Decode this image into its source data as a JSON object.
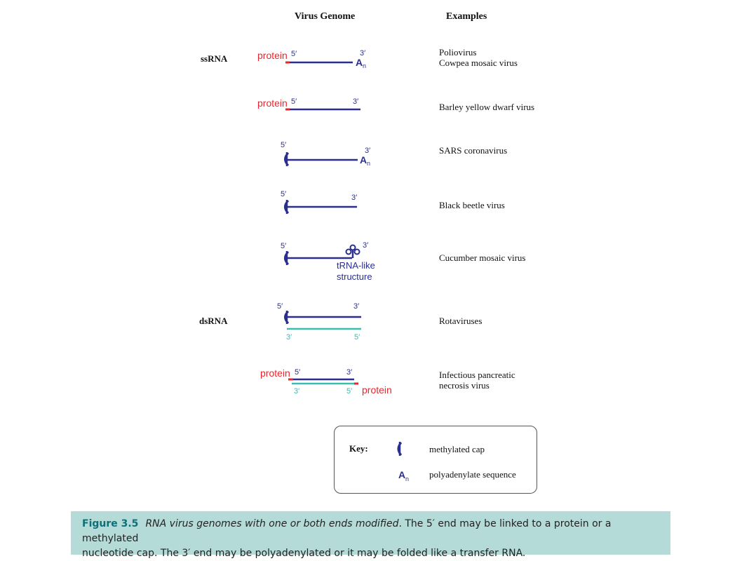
{
  "headers": {
    "genome": "Virus Genome",
    "examples": "Examples"
  },
  "row_labels": {
    "ss": "ssRNA",
    "ds": "dsRNA"
  },
  "diagram_text": {
    "protein": "protein",
    "five": "5′",
    "three": "3′",
    "an_a": "A",
    "an_n": "n",
    "trna_line1": "tRNA-like",
    "trna_line2": "structure"
  },
  "examples": {
    "r1_line1": "Poliovirus",
    "r1_line2": "Cowpea mosaic virus",
    "r2": "Barley yellow dwarf virus",
    "r3": "SARS coronavirus",
    "r4": "Black beetle virus",
    "r5": "Cucumber mosaic virus",
    "r6": "Rotaviruses",
    "r7_line1": "Infectious pancreatic",
    "r7_line2": "necrosis virus"
  },
  "key": {
    "title": "Key:",
    "cap_label": "methylated cap",
    "polya_label": "polyadenylate sequence"
  },
  "caption": {
    "figure": "Figure 3.5",
    "title": "RNA virus genomes with one or both ends modified",
    "text_line1": ". The 5′ end may be linked to a protein or a methylated",
    "text_line2": "nucleotide cap. The 3′ end may be polyadenylated or it may be folded like a transfer RNA."
  },
  "colors": {
    "rna_strand": "#2a2f8f",
    "complement_strand": "#3bbcb0",
    "protein": "#e8262c",
    "caption_bg": "#b5dbd9",
    "caption_title": "#0e6f78"
  }
}
